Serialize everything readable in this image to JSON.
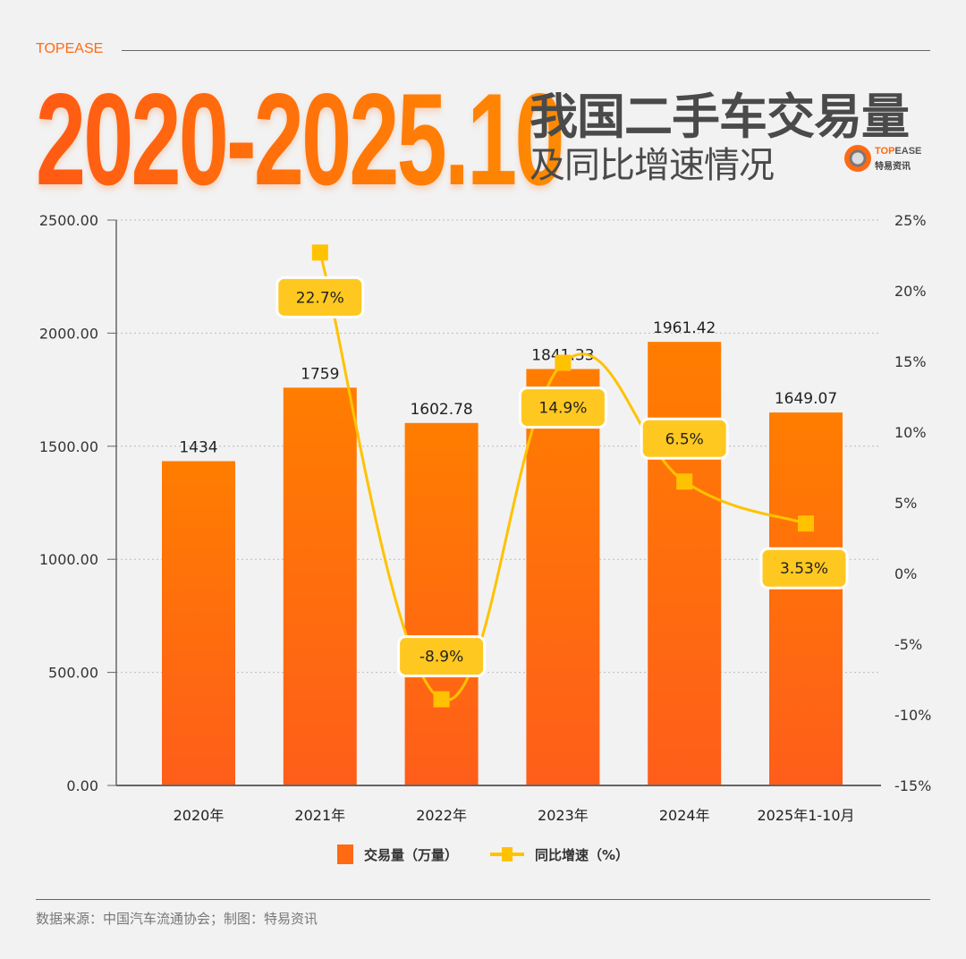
{
  "header": {
    "brand": "TOPEASE",
    "title_main": "2020-2025.10",
    "title_line1": "我国二手车交易量",
    "title_line2": "及同比增速情况",
    "logo_en_a": "TOP",
    "logo_en_b": "EASE",
    "logo_cn": "特易资讯"
  },
  "chart_data": {
    "type": "bar+line",
    "categories": [
      "2020年",
      "2021年",
      "2022年",
      "2023年",
      "2024年",
      "2025年1-10月"
    ],
    "series": [
      {
        "name": "交易量（万量）",
        "type": "bar",
        "axis": "left",
        "values": [
          1434,
          1759,
          1602.78,
          1841.33,
          1961.42,
          1649.07
        ],
        "labels": [
          "1434",
          "1759",
          "1602.78",
          "1841.33",
          "1961.42",
          "1649.07"
        ],
        "color": "#ff6a13"
      },
      {
        "name": "同比增速（%）",
        "type": "line",
        "axis": "right",
        "values": [
          null,
          22.7,
          -8.9,
          14.9,
          6.5,
          3.53
        ],
        "labels": [
          "",
          "22.7%",
          "-8.9%",
          "14.9%",
          "6.5%",
          "3.53%"
        ],
        "color": "#ffc200"
      }
    ],
    "left_axis": {
      "range": [
        0,
        2500
      ],
      "ticks": [
        "0.00",
        "500.00",
        "1000.00",
        "1500.00",
        "2000.00",
        "2500.00"
      ]
    },
    "right_axis": {
      "range": [
        -15,
        25
      ],
      "ticks": [
        "-15%",
        "-10%",
        "-5%",
        "0%",
        "5%",
        "10%",
        "15%",
        "20%",
        "25%"
      ]
    },
    "grid": "horizontal dotted",
    "legend_placement": "bottom"
  },
  "footer": {
    "source": "数据来源：中国汽车流通协会；制图：特易资讯"
  }
}
